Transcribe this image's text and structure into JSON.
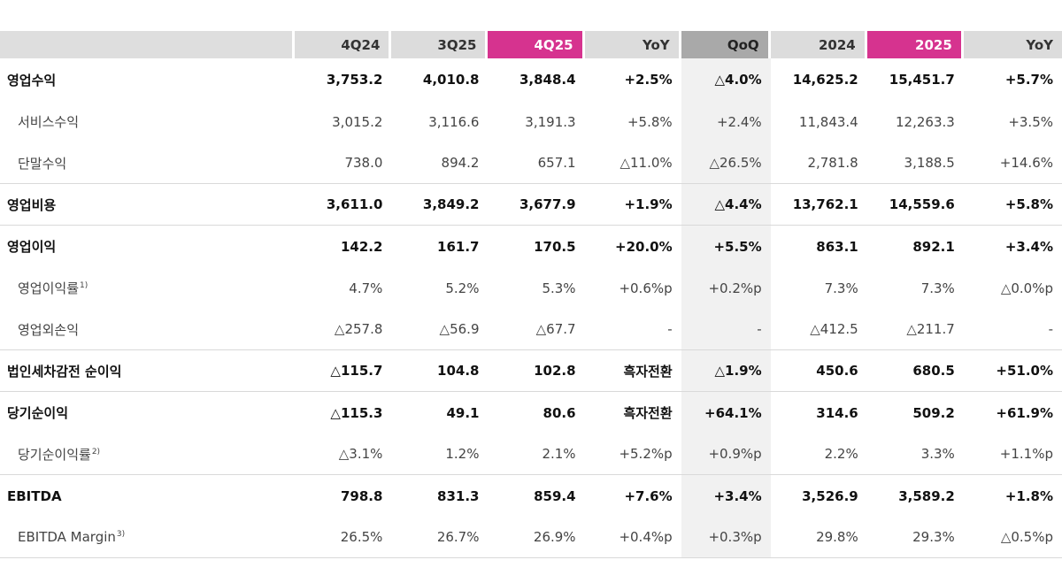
{
  "headers": [
    "",
    "4Q24",
    "3Q25",
    "4Q25",
    "YoY",
    "QoQ",
    "2024",
    "2025",
    "YoY"
  ],
  "rows": [
    {
      "label": "영업수익",
      "sup": "",
      "style": "bold",
      "cells": [
        "3,753.2",
        "4,010.8",
        "3,848.4",
        "+2.5%",
        "△4.0%",
        "14,625.2",
        "15,451.7",
        "+5.7%"
      ]
    },
    {
      "label": "서비스수익",
      "sup": "",
      "style": "sub",
      "cells": [
        "3,015.2",
        "3,116.6",
        "3,191.3",
        "+5.8%",
        "+2.4%",
        "11,843.4",
        "12,263.3",
        "+3.5%"
      ]
    },
    {
      "label": "단말수익",
      "sup": "",
      "style": "sub",
      "cells": [
        "738.0",
        "894.2",
        "657.1",
        "△11.0%",
        "△26.5%",
        "2,781.8",
        "3,188.5",
        "+14.6%"
      ]
    },
    {
      "label": "영업비용",
      "sup": "",
      "style": "bold",
      "cells": [
        "3,611.0",
        "3,849.2",
        "3,677.9",
        "+1.9%",
        "△4.4%",
        "13,762.1",
        "14,559.6",
        "+5.8%"
      ]
    },
    {
      "label": "영업이익",
      "sup": "",
      "style": "bold",
      "cells": [
        "142.2",
        "161.7",
        "170.5",
        "+20.0%",
        "+5.5%",
        "863.1",
        "892.1",
        "+3.4%"
      ]
    },
    {
      "label": "영업이익률",
      "sup": "1)",
      "style": "sub",
      "cells": [
        "4.7%",
        "5.2%",
        "5.3%",
        "+0.6%p",
        "+0.2%p",
        "7.3%",
        "7.3%",
        "△0.0%p"
      ]
    },
    {
      "label": "영업외손익",
      "sup": "",
      "style": "sub",
      "cells": [
        "△257.8",
        "△56.9",
        "△67.7",
        "-",
        "-",
        "△412.5",
        "△211.7",
        "-"
      ]
    },
    {
      "label": "법인세차감전 순이익",
      "sup": "",
      "style": "bold",
      "cells": [
        "△115.7",
        "104.8",
        "102.8",
        "흑자전환",
        "△1.9%",
        "450.6",
        "680.5",
        "+51.0%"
      ]
    },
    {
      "label": "당기순이익",
      "sup": "",
      "style": "bold",
      "cells": [
        "△115.3",
        "49.1",
        "80.6",
        "흑자전환",
        "+64.1%",
        "314.6",
        "509.2",
        "+61.9%"
      ]
    },
    {
      "label": "당기순이익률",
      "sup": "2)",
      "style": "sub",
      "cells": [
        "△3.1%",
        "1.2%",
        "2.1%",
        "+5.2%p",
        "+0.9%p",
        "2.2%",
        "3.3%",
        "+1.1%p"
      ]
    },
    {
      "label": "EBITDA",
      "sup": "",
      "style": "bold",
      "cells": [
        "798.8",
        "831.3",
        "859.4",
        "+7.6%",
        "+3.4%",
        "3,526.9",
        "3,589.2",
        "+1.8%"
      ]
    },
    {
      "label": "EBITDA Margin",
      "sup": "3)",
      "style": "sub",
      "cells": [
        "26.5%",
        "26.7%",
        "26.9%",
        "+0.4%p",
        "+0.3%p",
        "29.8%",
        "29.3%",
        "△0.5%p"
      ]
    }
  ],
  "colors": {
    "highlight": "#d6338f",
    "header_gray": "#dcdcdc",
    "qoq_header": "#a9a9a9",
    "qoq_column": "#f1f1f1"
  }
}
